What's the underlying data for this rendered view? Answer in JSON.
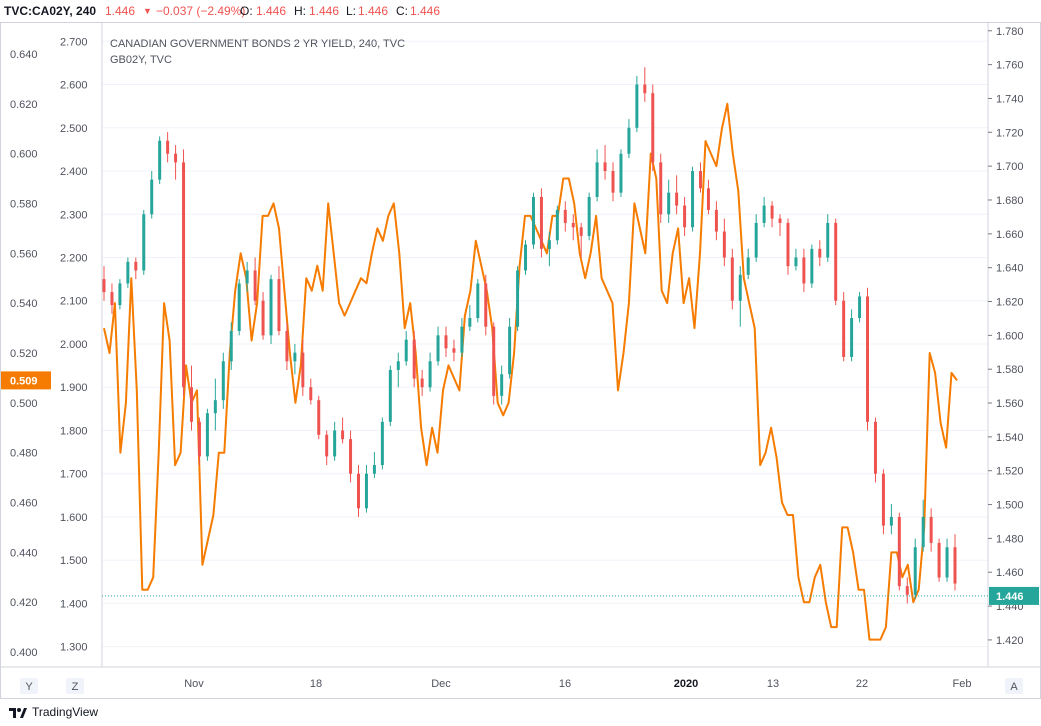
{
  "header": {
    "symbol": "TVC:CA02Y, 240",
    "last": "1.446",
    "change": "−0.037 (−2.49%)",
    "o_label": "O:",
    "o": "1.446",
    "h_label": "H:",
    "h": "1.446",
    "l_label": "L:",
    "l": "1.446",
    "c_label": "C:",
    "c": "1.446"
  },
  "legend": {
    "main": "CANADIAN GOVERNMENT BONDS 2 YR YIELD, 240, TVC",
    "compare": "GB02Y, TVC"
  },
  "footer": {
    "brand": "TradingView",
    "y_btn": "Y",
    "z_btn": "Z",
    "a_btn": "A"
  },
  "colors": {
    "up": "#26a69a",
    "down": "#ef5350",
    "compare": "#f57c00",
    "tag_orange": "#f57c00",
    "tag_teal": "#26a69a"
  },
  "chart_data": {
    "type": "line",
    "x_ticks": [
      "Nov",
      "18",
      "Dec",
      "16",
      "2020",
      "13",
      "22",
      "Feb"
    ],
    "left_axis": {
      "series": "GB02Y",
      "ticks": [
        "0.640",
        "0.620",
        "0.600",
        "0.580",
        "0.560",
        "0.540",
        "0.520",
        "0.500",
        "0.480",
        "0.460",
        "0.440",
        "0.420",
        "0.400"
      ],
      "ylim": [
        0.394,
        0.652
      ],
      "last_label": "0.509"
    },
    "mid_axis": {
      "series": "CA02Y",
      "ticks": [
        "2.700",
        "2.600",
        "2.500",
        "2.400",
        "2.300",
        "2.200",
        "2.100",
        "2.000",
        "1.900",
        "1.800",
        "1.700",
        "1.600",
        "1.500",
        "1.400",
        "1.300"
      ],
      "ylim": [
        1.253,
        2.74
      ]
    },
    "right_axis": {
      "series": "CA02Y",
      "ticks": [
        "1.780",
        "1.760",
        "1.740",
        "1.720",
        "1.700",
        "1.680",
        "1.660",
        "1.640",
        "1.620",
        "1.600",
        "1.580",
        "1.560",
        "1.540",
        "1.520",
        "1.500",
        "1.480",
        "1.460",
        "1.440",
        "1.420"
      ],
      "ylim": [
        1.404,
        1.784
      ],
      "last_label": "1.446",
      "last_value": 1.446
    },
    "series": [
      {
        "name": "GB02Y",
        "values": [
          0.53,
          0.52,
          0.54,
          0.48,
          0.5,
          0.55,
          0.505,
          0.425,
          0.425,
          0.43,
          0.48,
          0.54,
          0.525,
          0.475,
          0.48,
          0.515,
          0.5,
          0.505,
          0.435,
          0.445,
          0.455,
          0.48,
          0.48,
          0.52,
          0.545,
          0.56,
          0.55,
          0.525,
          0.54,
          0.575,
          0.575,
          0.58,
          0.57,
          0.545,
          0.52,
          0.5,
          0.515,
          0.55,
          0.545,
          0.555,
          0.545,
          0.58,
          0.56,
          0.54,
          0.535,
          0.54,
          0.545,
          0.55,
          0.548,
          0.56,
          0.57,
          0.565,
          0.575,
          0.58,
          0.56,
          0.53,
          0.54,
          0.52,
          0.49,
          0.475,
          0.49,
          0.48,
          0.505,
          0.515,
          0.51,
          0.505,
          0.535,
          0.545,
          0.565,
          0.555,
          0.545,
          0.53,
          0.5,
          0.495,
          0.5,
          0.52,
          0.555,
          0.575,
          0.575,
          0.57,
          0.565,
          0.56,
          0.575,
          0.575,
          0.59,
          0.59,
          0.58,
          0.56,
          0.55,
          0.56,
          0.575,
          0.55,
          0.545,
          0.54,
          0.505,
          0.52,
          0.54,
          0.58,
          0.57,
          0.56,
          0.6,
          0.59,
          0.545,
          0.54,
          0.56,
          0.57,
          0.54,
          0.55,
          0.53,
          0.56,
          0.605,
          0.6,
          0.595,
          0.61,
          0.62,
          0.6,
          0.585,
          0.55,
          0.54,
          0.53,
          0.475,
          0.48,
          0.49,
          0.478,
          0.46,
          0.455,
          0.455,
          0.43,
          0.42,
          0.42,
          0.43,
          0.435,
          0.42,
          0.41,
          0.41,
          0.45,
          0.45,
          0.44,
          0.425,
          0.425,
          0.405,
          0.405,
          0.405,
          0.41,
          0.44,
          0.44,
          0.43,
          0.435,
          0.42,
          0.425,
          0.45,
          0.52,
          0.512,
          0.492,
          0.482,
          0.512,
          0.509
        ]
      },
      {
        "name": "CA02Y",
        "candles": [
          [
            2.15,
            2.18,
            2.1,
            2.12
          ],
          [
            2.12,
            2.14,
            2.07,
            2.09
          ],
          [
            2.09,
            2.15,
            2.08,
            2.14
          ],
          [
            2.14,
            2.2,
            2.13,
            2.19
          ],
          [
            2.19,
            2.2,
            2.15,
            2.17
          ],
          [
            2.17,
            2.31,
            2.16,
            2.3
          ],
          [
            2.3,
            2.4,
            2.29,
            2.38
          ],
          [
            2.38,
            2.48,
            2.37,
            2.47
          ],
          [
            2.47,
            2.49,
            2.42,
            2.44
          ],
          [
            2.44,
            2.46,
            2.38,
            2.42
          ],
          [
            2.42,
            2.45,
            1.88,
            1.9
          ],
          [
            1.9,
            1.95,
            1.8,
            1.82
          ],
          [
            1.82,
            1.83,
            1.72,
            1.74
          ],
          [
            1.74,
            1.85,
            1.73,
            1.84
          ],
          [
            1.84,
            1.92,
            1.8,
            1.87
          ],
          [
            1.87,
            1.98,
            1.85,
            1.96
          ],
          [
            1.96,
            2.05,
            1.94,
            2.03
          ],
          [
            2.03,
            2.15,
            2.02,
            2.14
          ],
          [
            2.14,
            2.19,
            2.12,
            2.17
          ],
          [
            2.17,
            2.2,
            2.09,
            2.1
          ],
          [
            2.1,
            2.12,
            2.01,
            2.02
          ],
          [
            2.02,
            2.16,
            2.0,
            2.15
          ],
          [
            2.15,
            2.18,
            2.02,
            2.03
          ],
          [
            2.03,
            2.05,
            1.94,
            1.96
          ],
          [
            1.96,
            2.0,
            1.93,
            1.98
          ],
          [
            1.98,
            2.01,
            1.88,
            1.9
          ],
          [
            1.9,
            1.92,
            1.86,
            1.87
          ],
          [
            1.87,
            1.88,
            1.78,
            1.79
          ],
          [
            1.79,
            1.8,
            1.72,
            1.74
          ],
          [
            1.74,
            1.82,
            1.73,
            1.8
          ],
          [
            1.8,
            1.83,
            1.77,
            1.78
          ],
          [
            1.78,
            1.8,
            1.68,
            1.7
          ],
          [
            1.7,
            1.72,
            1.6,
            1.62
          ],
          [
            1.62,
            1.72,
            1.61,
            1.7
          ],
          [
            1.7,
            1.75,
            1.69,
            1.72
          ],
          [
            1.72,
            1.83,
            1.71,
            1.82
          ],
          [
            1.82,
            1.95,
            1.81,
            1.94
          ],
          [
            1.94,
            1.98,
            1.9,
            1.96
          ],
          [
            1.96,
            2.03,
            1.95,
            2.01
          ],
          [
            2.01,
            2.03,
            1.9,
            1.92
          ],
          [
            1.92,
            1.94,
            1.88,
            1.9
          ],
          [
            1.9,
            1.98,
            1.89,
            1.96
          ],
          [
            1.96,
            2.04,
            1.95,
            2.02
          ],
          [
            2.02,
            2.04,
            1.97,
            1.99
          ],
          [
            1.99,
            2.01,
            1.96,
            1.98
          ],
          [
            1.98,
            2.06,
            1.97,
            2.04
          ],
          [
            2.04,
            2.09,
            2.03,
            2.06
          ],
          [
            2.06,
            2.15,
            2.05,
            2.14
          ],
          [
            2.14,
            2.16,
            2.02,
            2.04
          ],
          [
            2.04,
            2.05,
            1.86,
            1.88
          ],
          [
            1.88,
            1.95,
            1.86,
            1.93
          ],
          [
            1.93,
            2.06,
            1.92,
            2.04
          ],
          [
            2.04,
            2.18,
            2.03,
            2.17
          ],
          [
            2.17,
            2.24,
            2.16,
            2.23
          ],
          [
            2.23,
            2.35,
            2.22,
            2.34
          ],
          [
            2.34,
            2.36,
            2.2,
            2.22
          ],
          [
            2.22,
            2.26,
            2.18,
            2.24
          ],
          [
            2.24,
            2.32,
            2.23,
            2.31
          ],
          [
            2.31,
            2.33,
            2.26,
            2.28
          ],
          [
            2.28,
            2.3,
            2.24,
            2.27
          ],
          [
            2.27,
            2.28,
            2.2,
            2.25
          ],
          [
            2.25,
            2.35,
            2.24,
            2.34
          ],
          [
            2.34,
            2.45,
            2.33,
            2.42
          ],
          [
            2.42,
            2.46,
            2.38,
            2.4
          ],
          [
            2.4,
            2.42,
            2.33,
            2.35
          ],
          [
            2.35,
            2.45,
            2.34,
            2.44
          ],
          [
            2.44,
            2.52,
            2.43,
            2.5
          ],
          [
            2.5,
            2.62,
            2.49,
            2.6
          ],
          [
            2.6,
            2.64,
            2.56,
            2.58
          ],
          [
            2.58,
            2.6,
            2.4,
            2.42
          ],
          [
            2.42,
            2.44,
            2.28,
            2.3
          ],
          [
            2.3,
            2.38,
            2.28,
            2.35
          ],
          [
            2.35,
            2.39,
            2.3,
            2.32
          ],
          [
            2.32,
            2.34,
            2.25,
            2.27
          ],
          [
            2.27,
            2.41,
            2.26,
            2.4
          ],
          [
            2.4,
            2.42,
            2.35,
            2.36
          ],
          [
            2.36,
            2.38,
            2.3,
            2.31
          ],
          [
            2.31,
            2.33,
            2.24,
            2.26
          ],
          [
            2.26,
            2.29,
            2.18,
            2.2
          ],
          [
            2.2,
            2.22,
            2.08,
            2.1
          ],
          [
            2.1,
            2.18,
            2.04,
            2.16
          ],
          [
            2.16,
            2.22,
            2.15,
            2.2
          ],
          [
            2.2,
            2.3,
            2.19,
            2.28
          ],
          [
            2.28,
            2.34,
            2.27,
            2.32
          ],
          [
            2.32,
            2.33,
            2.27,
            2.29
          ],
          [
            2.29,
            2.3,
            2.25,
            2.28
          ],
          [
            2.28,
            2.29,
            2.16,
            2.18
          ],
          [
            2.18,
            2.22,
            2.17,
            2.2
          ],
          [
            2.2,
            2.22,
            2.12,
            2.14
          ],
          [
            2.14,
            2.23,
            2.13,
            2.22
          ],
          [
            2.22,
            2.24,
            2.18,
            2.2
          ],
          [
            2.2,
            2.3,
            2.19,
            2.28
          ],
          [
            2.28,
            2.29,
            2.09,
            2.1
          ],
          [
            2.1,
            2.12,
            1.96,
            1.97
          ],
          [
            1.97,
            2.08,
            1.96,
            2.06
          ],
          [
            2.06,
            2.12,
            2.05,
            2.11
          ],
          [
            2.11,
            2.13,
            1.8,
            1.82
          ],
          [
            1.82,
            1.83,
            1.68,
            1.7
          ],
          [
            1.7,
            1.71,
            1.56,
            1.58
          ],
          [
            1.58,
            1.63,
            1.56,
            1.6
          ],
          [
            1.6,
            1.61,
            1.43,
            1.44
          ],
          [
            1.44,
            1.46,
            1.4,
            1.42
          ],
          [
            1.42,
            1.55,
            1.41,
            1.53
          ],
          [
            1.53,
            1.64,
            1.52,
            1.6
          ],
          [
            1.6,
            1.62,
            1.52,
            1.54
          ],
          [
            1.54,
            1.55,
            1.45,
            1.46
          ],
          [
            1.46,
            1.55,
            1.45,
            1.53
          ],
          [
            1.53,
            1.56,
            1.43,
            1.446
          ]
        ]
      }
    ]
  }
}
